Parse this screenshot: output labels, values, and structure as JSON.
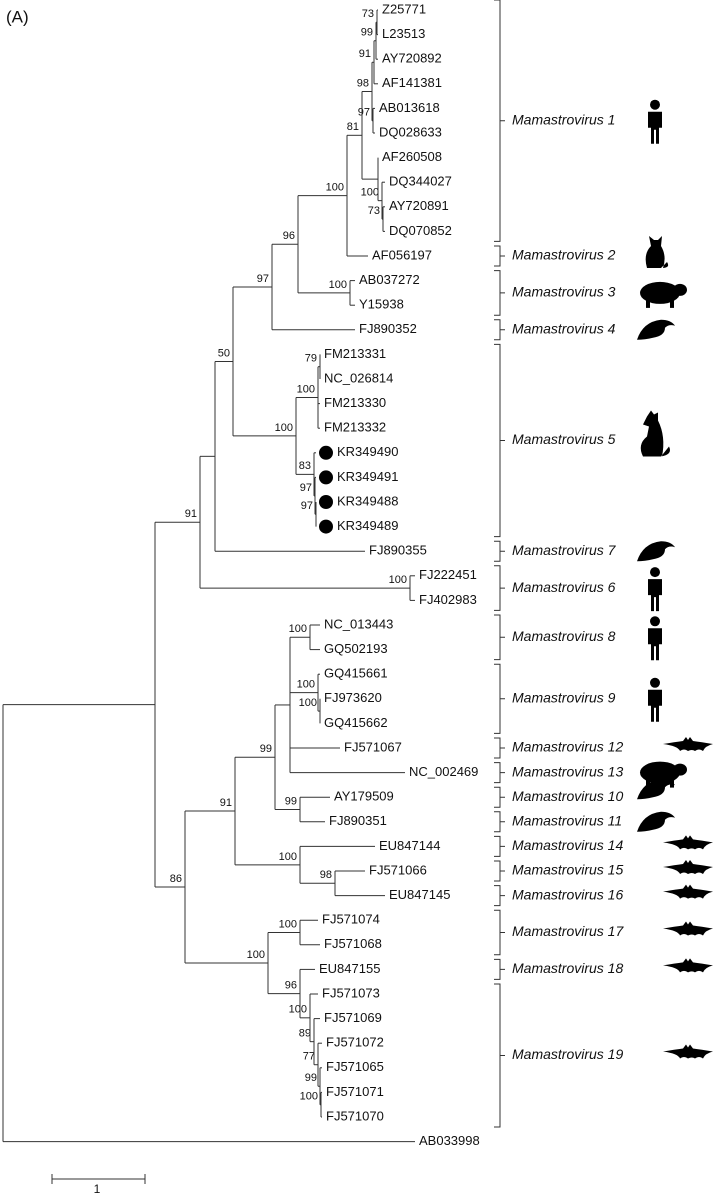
{
  "panel_label": "(A)",
  "leaves": [
    "Z25771",
    "L23513",
    "AY720892",
    "AF141381",
    "AB013618",
    "DQ028633",
    "AF260508",
    "DQ344027",
    "AY720891",
    "DQ070852",
    "AF056197",
    "AB037272",
    "Y15938",
    "FJ890352",
    "FM213331",
    "NC_026814",
    "FM213330",
    "FM213332",
    "KR349490",
    "KR349491",
    "KR349488",
    "KR349489",
    "FJ890355",
    "FJ222451",
    "FJ402983",
    "NC_013443",
    "GQ502193",
    "GQ415661",
    "FJ973620",
    "GQ415662",
    "FJ571067",
    "NC_002469",
    "AY179509",
    "FJ890351",
    "EU847144",
    "FJ571066",
    "EU847145",
    "FJ571074",
    "FJ571068",
    "EU847155",
    "FJ571073",
    "FJ571069",
    "FJ571072",
    "FJ571065",
    "FJ571071",
    "FJ571070",
    "AB033998"
  ],
  "support": [
    73,
    99,
    91,
    97,
    98,
    100,
    81,
    100,
    73,
    96,
    97,
    100,
    50,
    79,
    100,
    100,
    83,
    97,
    97,
    91,
    100,
    100,
    100,
    100,
    99,
    91,
    99,
    100,
    98,
    86,
    100,
    100,
    96,
    100,
    89,
    77,
    99,
    100
  ],
  "clades": [
    "Mamastrovirus 1",
    "Mamastrovirus 2",
    "Mamastrovirus 3",
    "Mamastrovirus 4",
    "Mamastrovirus 5",
    "Mamastrovirus 7",
    "Mamastrovirus 6",
    "Mamastrovirus 8",
    "Mamastrovirus 9",
    "Mamastrovirus 12",
    "Mamastrovirus 13",
    "Mamastrovirus 10",
    "Mamastrovirus 11",
    "Mamastrovirus 14",
    "Mamastrovirus 15",
    "Mamastrovirus 16",
    "Mamastrovirus 17",
    "Mamastrovirus 18",
    "Mamastrovirus 19"
  ],
  "scale_label": "1"
}
